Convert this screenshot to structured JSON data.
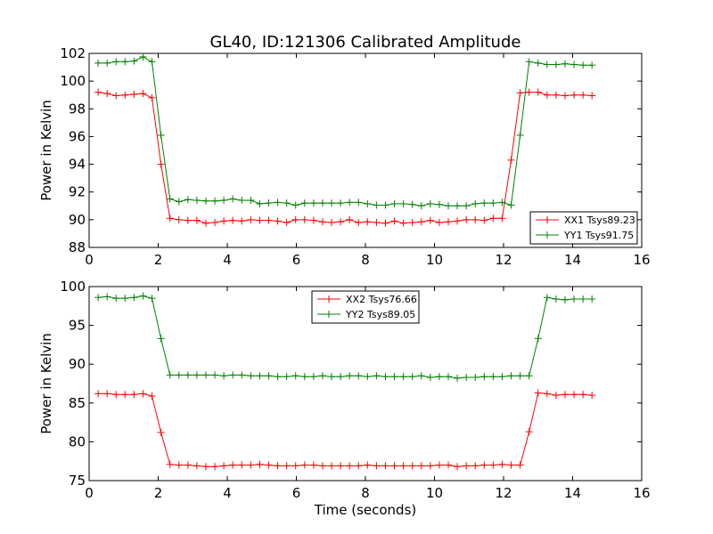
{
  "figure": {
    "title": "GL40, ID:121306 Calibrated Amplitude"
  },
  "chart_data": [
    {
      "type": "line",
      "title": "GL40, ID:121306 Calibrated Amplitude",
      "xlabel": "",
      "ylabel": "Power in Kelvin",
      "xlim": [
        0,
        16
      ],
      "ylim": [
        88,
        102
      ],
      "xticks": [
        0,
        2,
        4,
        6,
        8,
        10,
        12,
        14,
        16
      ],
      "yticks": [
        88,
        90,
        92,
        94,
        96,
        98,
        100,
        102
      ],
      "grid": false,
      "legend": "bottom-right",
      "x": [
        0.26,
        0.52,
        0.78,
        1.04,
        1.3,
        1.56,
        1.82,
        2.08,
        2.34,
        2.6,
        2.86,
        3.12,
        3.38,
        3.64,
        3.9,
        4.16,
        4.42,
        4.68,
        4.94,
        5.2,
        5.46,
        5.72,
        5.98,
        6.24,
        6.5,
        6.76,
        7.02,
        7.28,
        7.54,
        7.8,
        8.06,
        8.32,
        8.58,
        8.84,
        9.1,
        9.36,
        9.62,
        9.88,
        10.14,
        10.4,
        10.66,
        10.92,
        11.18,
        11.44,
        11.7,
        11.96,
        12.22,
        12.48,
        12.74,
        13.0,
        13.26,
        13.52,
        13.78,
        14.04,
        14.3,
        14.56
      ],
      "series": [
        {
          "name": "XX1 Tsys89.23",
          "color": "#ff0000",
          "values": [
            99.2,
            99.1,
            98.95,
            99.0,
            99.05,
            99.1,
            98.8,
            94.0,
            90.1,
            90.0,
            89.95,
            89.95,
            89.75,
            89.8,
            89.9,
            89.95,
            89.9,
            90.0,
            89.95,
            89.95,
            89.9,
            89.8,
            90.0,
            90.0,
            89.95,
            89.85,
            89.8,
            89.85,
            90.0,
            89.8,
            89.85,
            89.8,
            89.75,
            89.9,
            89.75,
            89.8,
            89.85,
            89.95,
            89.8,
            89.85,
            89.9,
            90.0,
            90.0,
            89.95,
            90.1,
            90.1,
            94.3,
            99.15,
            99.2,
            99.2,
            99.0,
            99.0,
            98.95,
            99.0,
            99.0,
            98.95
          ]
        },
        {
          "name": "YY1 Tsys91.75",
          "color": "#008000",
          "values": [
            101.3,
            101.3,
            101.4,
            101.4,
            101.45,
            101.75,
            101.4,
            96.1,
            91.5,
            91.3,
            91.45,
            91.4,
            91.35,
            91.35,
            91.4,
            91.5,
            91.4,
            91.4,
            91.15,
            91.2,
            91.25,
            91.2,
            91.05,
            91.2,
            91.2,
            91.2,
            91.2,
            91.2,
            91.25,
            91.25,
            91.15,
            91.05,
            91.05,
            91.15,
            91.15,
            91.1,
            91.0,
            91.15,
            91.1,
            91.0,
            91.0,
            91.0,
            91.15,
            91.2,
            91.2,
            91.25,
            91.05,
            96.1,
            101.4,
            101.3,
            101.2,
            101.2,
            101.25,
            101.2,
            101.15,
            101.15
          ]
        }
      ]
    },
    {
      "type": "line",
      "title": "",
      "xlabel": "Time (seconds)",
      "ylabel": "Power in Kelvin",
      "xlim": [
        0,
        16
      ],
      "ylim": [
        75,
        100
      ],
      "xticks": [
        0,
        2,
        4,
        6,
        8,
        10,
        12,
        14,
        16
      ],
      "yticks": [
        75,
        80,
        85,
        90,
        95,
        100
      ],
      "grid": false,
      "legend": "top-center",
      "x": [
        0.26,
        0.52,
        0.78,
        1.04,
        1.3,
        1.56,
        1.82,
        2.08,
        2.34,
        2.6,
        2.86,
        3.12,
        3.38,
        3.64,
        3.9,
        4.16,
        4.42,
        4.68,
        4.94,
        5.2,
        5.46,
        5.72,
        5.98,
        6.24,
        6.5,
        6.76,
        7.02,
        7.28,
        7.54,
        7.8,
        8.06,
        8.32,
        8.58,
        8.84,
        9.1,
        9.36,
        9.62,
        9.88,
        10.14,
        10.4,
        10.66,
        10.92,
        11.18,
        11.44,
        11.7,
        11.96,
        12.22,
        12.48,
        12.74,
        13.0,
        13.26,
        13.52,
        13.78,
        14.04,
        14.3,
        14.56
      ],
      "series": [
        {
          "name": "XX2 Tsys76.66",
          "color": "#ff0000",
          "values": [
            86.2,
            86.2,
            86.1,
            86.1,
            86.1,
            86.2,
            85.9,
            81.2,
            77.1,
            77.0,
            77.0,
            76.9,
            76.8,
            76.8,
            76.9,
            77.0,
            77.0,
            77.0,
            77.1,
            77.0,
            76.9,
            76.9,
            76.9,
            77.0,
            77.0,
            76.9,
            76.9,
            76.9,
            76.9,
            76.9,
            77.0,
            76.9,
            76.9,
            76.9,
            76.9,
            76.9,
            76.9,
            76.9,
            77.0,
            77.0,
            76.8,
            76.9,
            76.9,
            77.0,
            77.0,
            77.1,
            77.0,
            77.0,
            81.3,
            86.3,
            86.2,
            86.0,
            86.1,
            86.1,
            86.1,
            86.0
          ]
        },
        {
          "name": "YY2 Tsys89.05",
          "color": "#008000",
          "values": [
            98.6,
            98.7,
            98.5,
            98.5,
            98.6,
            98.8,
            98.5,
            93.3,
            88.6,
            88.6,
            88.6,
            88.6,
            88.6,
            88.6,
            88.5,
            88.6,
            88.6,
            88.5,
            88.5,
            88.5,
            88.4,
            88.4,
            88.5,
            88.4,
            88.4,
            88.5,
            88.4,
            88.4,
            88.5,
            88.5,
            88.4,
            88.5,
            88.4,
            88.4,
            88.4,
            88.4,
            88.5,
            88.3,
            88.4,
            88.4,
            88.2,
            88.3,
            88.3,
            88.4,
            88.4,
            88.4,
            88.5,
            88.5,
            88.5,
            93.3,
            98.6,
            98.4,
            98.3,
            98.4,
            98.4,
            98.4
          ]
        }
      ]
    }
  ]
}
